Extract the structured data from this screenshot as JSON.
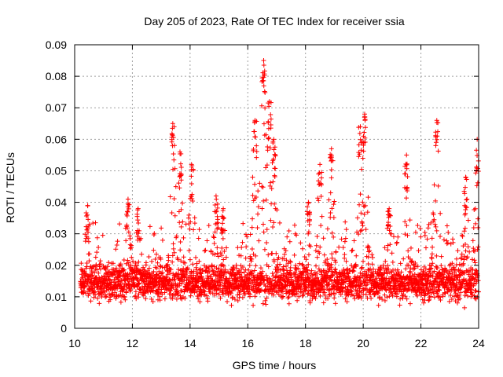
{
  "chart_data": {
    "type": "scatter",
    "title": "Day 205 of 2023, Rate Of TEC Index for receiver ssia",
    "xlabel": "GPS time / hours",
    "ylabel": "ROTI / TECUs",
    "xlim": [
      10,
      24
    ],
    "ylim": [
      0,
      0.09
    ],
    "x_ticks": [
      "10",
      "12",
      "14",
      "16",
      "18",
      "20",
      "22",
      "24"
    ],
    "y_ticks": [
      "0",
      "0.01",
      "0.02",
      "0.03",
      "0.04",
      "0.05",
      "0.06",
      "0.07",
      "0.08",
      "0.09"
    ],
    "grid": true,
    "marker": "+",
    "color": "#ff0000",
    "series": [
      {
        "name": "ROTI",
        "baseline_median_tecu": 0.012,
        "baseline_spread_tecu": 0.006,
        "peaks": [
          {
            "x": 10.45,
            "y": 0.039
          },
          {
            "x": 11.85,
            "y": 0.041
          },
          {
            "x": 12.2,
            "y": 0.038
          },
          {
            "x": 13.4,
            "y": 0.065
          },
          {
            "x": 13.65,
            "y": 0.056
          },
          {
            "x": 14.05,
            "y": 0.052
          },
          {
            "x": 14.9,
            "y": 0.042
          },
          {
            "x": 15.15,
            "y": 0.038
          },
          {
            "x": 16.25,
            "y": 0.066
          },
          {
            "x": 16.55,
            "y": 0.085
          },
          {
            "x": 16.75,
            "y": 0.072
          },
          {
            "x": 16.9,
            "y": 0.06
          },
          {
            "x": 18.1,
            "y": 0.04
          },
          {
            "x": 18.5,
            "y": 0.052
          },
          {
            "x": 18.9,
            "y": 0.057
          },
          {
            "x": 19.9,
            "y": 0.064
          },
          {
            "x": 20.05,
            "y": 0.068
          },
          {
            "x": 20.9,
            "y": 0.038
          },
          {
            "x": 21.5,
            "y": 0.055
          },
          {
            "x": 22.55,
            "y": 0.066
          },
          {
            "x": 23.55,
            "y": 0.048
          },
          {
            "x": 23.95,
            "y": 0.06
          }
        ]
      }
    ]
  }
}
